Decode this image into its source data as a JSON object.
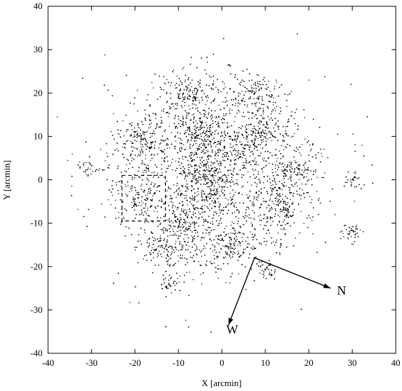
{
  "chart_data": {
    "type": "scatter",
    "title": "",
    "xlabel": "X [arcmin]",
    "ylabel": "Y [arcmin]",
    "xlim": [
      -40,
      40
    ],
    "ylim": [
      -40,
      40
    ],
    "xticks": [
      -40,
      -30,
      -20,
      -10,
      0,
      10,
      20,
      30,
      40
    ],
    "yticks": [
      -40,
      -30,
      -20,
      -10,
      0,
      10,
      20,
      30,
      40
    ],
    "grid": false,
    "legend": "none",
    "point_color": "#000000",
    "point_cloud": {
      "center": [
        -2,
        2
      ],
      "radius": 28,
      "count": 9000,
      "clumps": [
        {
          "x": -3,
          "y": 0,
          "r": 7,
          "w": 9
        },
        {
          "x": -5,
          "y": 11,
          "r": 4,
          "w": 4
        },
        {
          "x": 4,
          "y": 8,
          "r": 4,
          "w": 3
        },
        {
          "x": 9,
          "y": 11,
          "r": 3,
          "w": 2
        },
        {
          "x": -19,
          "y": 9,
          "r": 3,
          "w": 3
        },
        {
          "x": -9,
          "y": -10,
          "r": 4,
          "w": 4
        },
        {
          "x": -14,
          "y": -16,
          "r": 3,
          "w": 2
        },
        {
          "x": 2,
          "y": -15,
          "r": 3,
          "w": 2
        },
        {
          "x": 13,
          "y": -7,
          "r": 3,
          "w": 2
        },
        {
          "x": 17,
          "y": 2,
          "r": 3,
          "w": 2
        },
        {
          "x": 8,
          "y": 20,
          "r": 3,
          "w": 2
        },
        {
          "x": -8,
          "y": 20,
          "r": 3,
          "w": 2
        },
        {
          "x": -18,
          "y": -4,
          "r": 3,
          "w": 2
        },
        {
          "x": -12,
          "y": -24,
          "r": 2,
          "w": 1
        },
        {
          "x": 10,
          "y": -21,
          "r": 2,
          "w": 1
        },
        {
          "x": 30,
          "y": -12,
          "r": 2,
          "w": 1
        },
        {
          "x": -31,
          "y": 3,
          "r": 2,
          "w": 1
        },
        {
          "x": 30,
          "y": 0,
          "r": 2,
          "w": 1
        }
      ]
    },
    "dashed_box": {
      "x0": -23,
      "x1": -13,
      "y0": -9.5,
      "y1": 1
    },
    "compass": {
      "origin": [
        7.5,
        -18
      ],
      "north": {
        "end": [
          25,
          -25
        ],
        "label": "N",
        "label_at": [
          26.5,
          -26.5
        ]
      },
      "west": {
        "end": [
          1.5,
          -33.5
        ],
        "label": "W",
        "label_at": [
          1,
          -35.5
        ]
      }
    }
  }
}
